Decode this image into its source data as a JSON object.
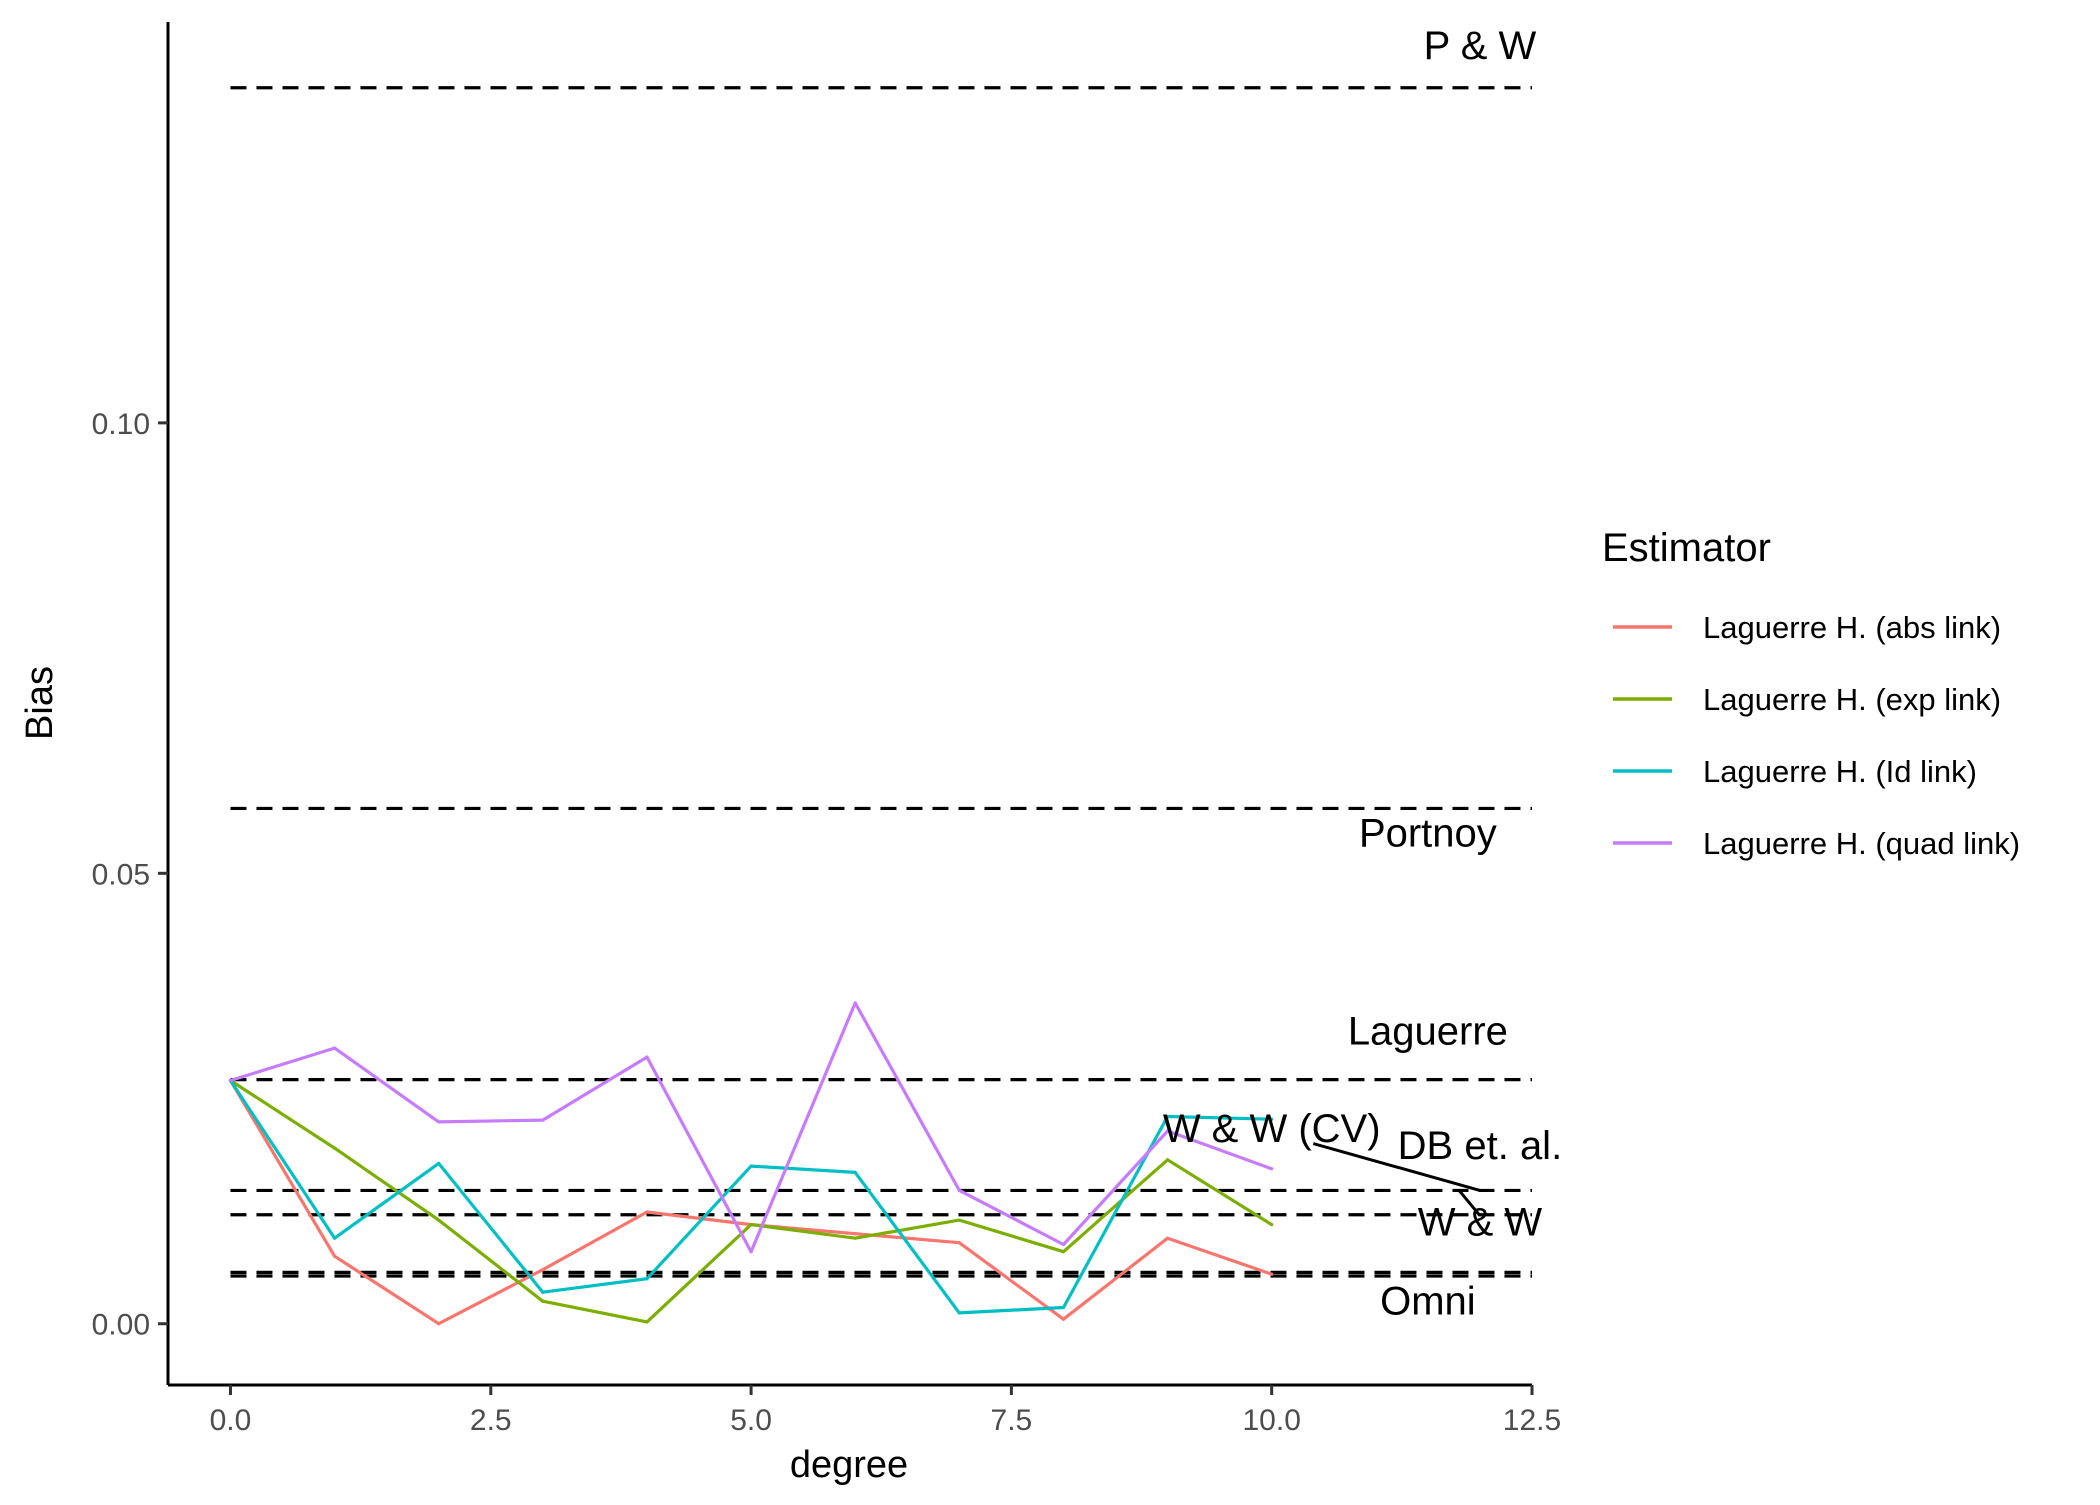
{
  "chart_data": {
    "type": "line",
    "title": "",
    "xlabel": "degree",
    "ylabel": "Bias",
    "xlim": [
      -0.6,
      12.5
    ],
    "ylim": [
      -0.0068,
      0.1445
    ],
    "x_ticks": [
      0.0,
      2.5,
      5.0,
      7.5,
      10.0,
      12.5
    ],
    "x_tick_labels": [
      "0.0",
      "2.5",
      "5.0",
      "7.5",
      "10.0",
      "12.5"
    ],
    "y_ticks": [
      0.0,
      0.05,
      0.1
    ],
    "y_tick_labels": [
      "0.00",
      "0.05",
      "0.10"
    ],
    "grid": false,
    "legend": {
      "title": "Estimator",
      "position": "right"
    },
    "x": [
      0,
      1,
      2,
      3,
      4,
      5,
      6,
      7,
      8,
      9,
      10
    ],
    "series": [
      {
        "name": "Laguerre H. (abs link)",
        "color": "#F8766D",
        "values": [
          0.027,
          0.0075,
          0.0,
          0.006,
          0.0124,
          0.011,
          0.01,
          0.009,
          0.0005,
          0.0095,
          0.0055
        ]
      },
      {
        "name": "Laguerre H. (exp link)",
        "color": "#7CAE00",
        "values": [
          0.027,
          0.0195,
          0.0115,
          0.0025,
          0.0002,
          0.011,
          0.0095,
          0.0115,
          0.008,
          0.0182,
          0.011
        ]
      },
      {
        "name": "Laguerre H. (Id link)",
        "color": "#00BFC4",
        "values": [
          0.027,
          0.0095,
          0.0178,
          0.0035,
          0.005,
          0.0175,
          0.0168,
          0.0012,
          0.0018,
          0.023,
          0.0227
        ]
      },
      {
        "name": "Laguerre H. (quad link)",
        "color": "#C77CFF",
        "values": [
          0.027,
          0.0306,
          0.0224,
          0.0226,
          0.0296,
          0.008,
          0.0356,
          0.0148,
          0.0088,
          0.0214,
          0.0172
        ]
      }
    ],
    "reference_lines": [
      {
        "label": "P & W",
        "y": 0.1372,
        "label_x": 12.0,
        "label_y": 0.1404
      },
      {
        "label": "Portnoy",
        "y": 0.0572,
        "label_x": 11.5,
        "label_y": 0.053
      },
      {
        "label": "Laguerre",
        "y": 0.0271,
        "label_x": 11.5,
        "label_y": 0.031
      },
      {
        "label": "W & W (CV)",
        "y": 0.0148,
        "label_x": 10.0,
        "label_y": 0.0202
      },
      {
        "label": "DB et. al.",
        "y": 0.0121,
        "label_x": 12.0,
        "label_y": 0.0183
      },
      {
        "label": "W & W",
        "y": 0.0057,
        "label_x": 12.0,
        "label_y": 0.0098
      },
      {
        "label": "Omni",
        "y": 0.0053,
        "label_x": 11.5,
        "label_y": 0.001
      }
    ],
    "label_leaders": [
      {
        "label": "W & W (CV)",
        "points": [
          [
            10.4,
            0.02
          ],
          [
            12.0,
            0.0148
          ]
        ]
      },
      {
        "label": "W & W",
        "points": [
          [
            11.8,
            0.0148
          ],
          [
            12.0,
            0.012
          ]
        ]
      }
    ],
    "reference_line_style": {
      "color": "#000000",
      "dash": "dashed",
      "x_start": 0.0,
      "x_end": 12.5
    }
  }
}
